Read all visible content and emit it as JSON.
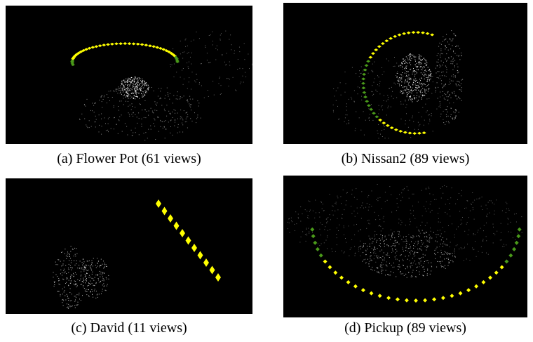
{
  "figure": {
    "panels": [
      {
        "caption": "(a) Flower Pot (61 views)"
      },
      {
        "caption": "(b) Nissan2 (89 views)"
      },
      {
        "caption": "(c) David (11 views)"
      },
      {
        "caption": "(d) Pickup (89 views)"
      }
    ]
  }
}
